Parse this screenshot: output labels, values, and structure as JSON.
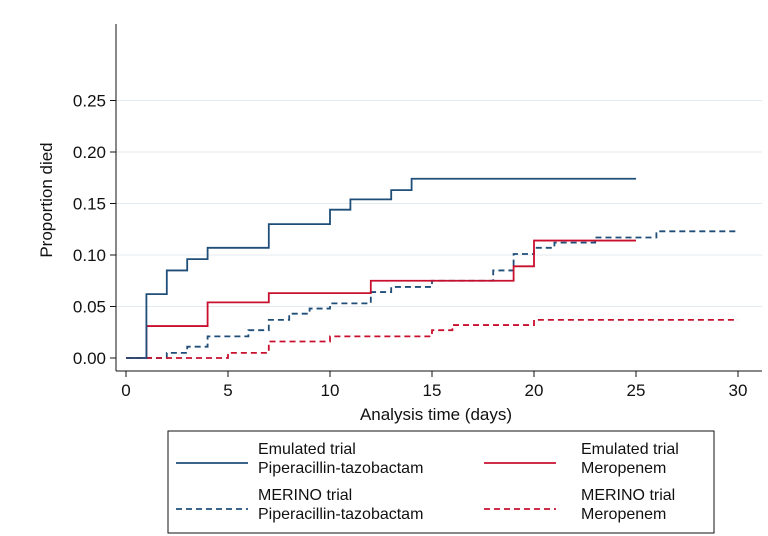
{
  "chart_data": {
    "type": "line",
    "step": true,
    "xlabel": "Analysis time (days)",
    "ylabel": "Proportion died",
    "xlim": [
      0,
      30
    ],
    "ylim": [
      0,
      0.25
    ],
    "x_ticks": [
      "0",
      "5",
      "10",
      "15",
      "20",
      "25",
      "30"
    ],
    "y_ticks": [
      "0.00",
      "0.05",
      "0.10",
      "0.15",
      "0.20",
      "0.25"
    ],
    "grid": true,
    "legend_position": "bottom",
    "series": [
      {
        "name_line1": "Emulated trial",
        "name_line2": "Piperacillin-tazobactam",
        "color": "#1f4e79",
        "dash": "solid",
        "points": [
          [
            0,
            0
          ],
          [
            1,
            0.062
          ],
          [
            2,
            0.085
          ],
          [
            3,
            0.096
          ],
          [
            4,
            0.107
          ],
          [
            7,
            0.13
          ],
          [
            10,
            0.144
          ],
          [
            11,
            0.154
          ],
          [
            13,
            0.163
          ],
          [
            14,
            0.174
          ],
          [
            25,
            0.174
          ]
        ]
      },
      {
        "name_line1": "Emulated trial",
        "name_line2": "Meropenem",
        "color": "#c8102e",
        "dash": "solid",
        "points": [
          [
            0,
            0
          ],
          [
            1,
            0.031
          ],
          [
            4,
            0.054
          ],
          [
            7,
            0.063
          ],
          [
            12,
            0.075
          ],
          [
            19,
            0.089
          ],
          [
            20,
            0.114
          ],
          [
            25,
            0.114
          ]
        ]
      },
      {
        "name_line1": "MERINO trial",
        "name_line2": "Piperacillin-tazobactam",
        "color": "#1f4e79",
        "dash": "dashed",
        "points": [
          [
            0,
            0
          ],
          [
            1,
            0
          ],
          [
            2,
            0.005
          ],
          [
            3,
            0.011
          ],
          [
            4,
            0.021
          ],
          [
            6,
            0.027
          ],
          [
            7,
            0.037
          ],
          [
            8,
            0.043
          ],
          [
            9,
            0.048
          ],
          [
            10,
            0.053
          ],
          [
            12,
            0.064
          ],
          [
            13,
            0.069
          ],
          [
            15,
            0.075
          ],
          [
            18,
            0.085
          ],
          [
            19,
            0.101
          ],
          [
            20,
            0.107
          ],
          [
            21,
            0.112
          ],
          [
            23,
            0.117
          ],
          [
            26,
            0.123
          ],
          [
            30,
            0.123
          ]
        ]
      },
      {
        "name_line1": "MERINO trial",
        "name_line2": "Meropenem",
        "color": "#c8102e",
        "dash": "dashed",
        "points": [
          [
            0,
            0
          ],
          [
            5,
            0.005
          ],
          [
            7,
            0.016
          ],
          [
            10,
            0.021
          ],
          [
            15,
            0.027
          ],
          [
            16,
            0.032
          ],
          [
            20,
            0.037
          ],
          [
            30,
            0.037
          ]
        ]
      }
    ]
  }
}
